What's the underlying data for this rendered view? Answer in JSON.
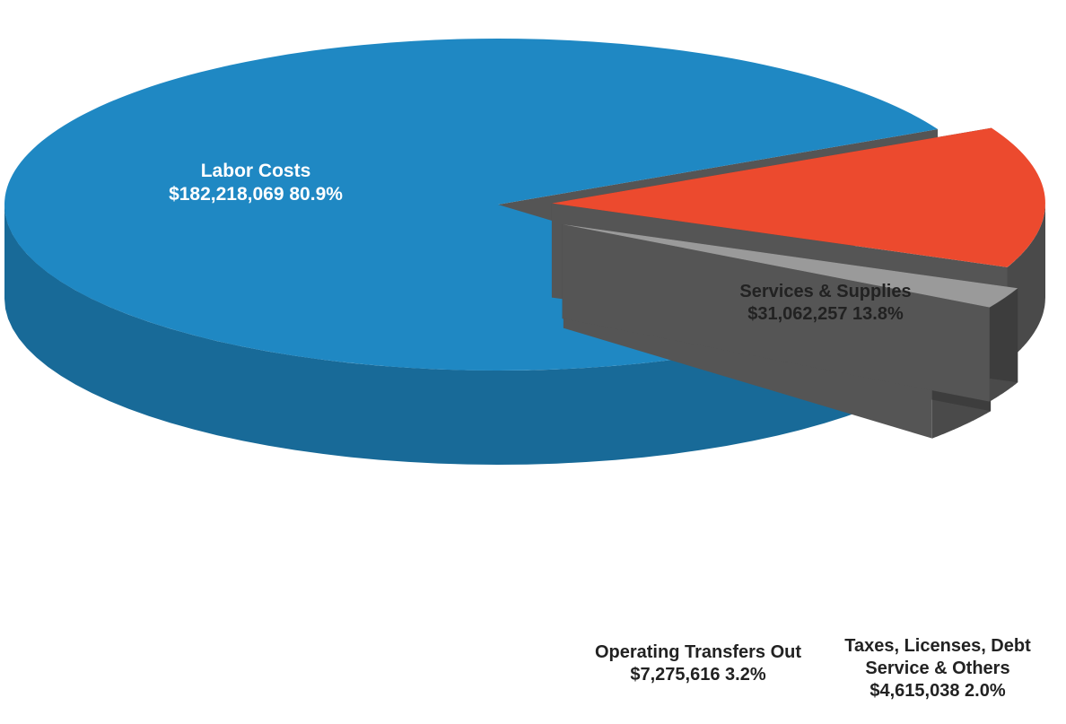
{
  "chart_data": {
    "type": "pie",
    "title": "",
    "slices": [
      {
        "name": "Labor Costs",
        "value": 182218069,
        "value_label": "$182,218,069",
        "percent": 80.9,
        "percent_label": "80.9%",
        "color": "#1f88c3",
        "exploded": false
      },
      {
        "name": "Services & Supplies",
        "value": 31062257,
        "value_label": "$31,062,257",
        "percent": 13.8,
        "percent_label": "13.8%",
        "color": "#ec4a2e",
        "exploded": true
      },
      {
        "name": "Taxes, Licenses, Debt Service & Others",
        "value": 4615038,
        "value_label": "$4,615,038",
        "percent": 2.0,
        "percent_label": "2.0%",
        "color": "#9a9a9a",
        "exploded": true
      },
      {
        "name": "Operating Transfers Out",
        "value": 7275616,
        "value_label": "$7,275,616",
        "percent": 3.2,
        "percent_label": "3.2%",
        "color": "#f08a30",
        "exploded": true
      }
    ],
    "style": "3d-exploded",
    "legend": "none"
  },
  "labels": {
    "labor": {
      "line1": "Labor Costs",
      "line2": "$182,218,069  80.9%"
    },
    "services": {
      "line1": "Services & Supplies",
      "line2": "$31,062,257  13.8%"
    },
    "transfers": {
      "line1": "Operating Transfers Out",
      "line2": "$7,275,616  3.2%"
    },
    "taxes": {
      "line1": "Taxes, Licenses, Debt",
      "line2": "Service & Others",
      "line3": "$4,615,038  2.0%"
    }
  }
}
